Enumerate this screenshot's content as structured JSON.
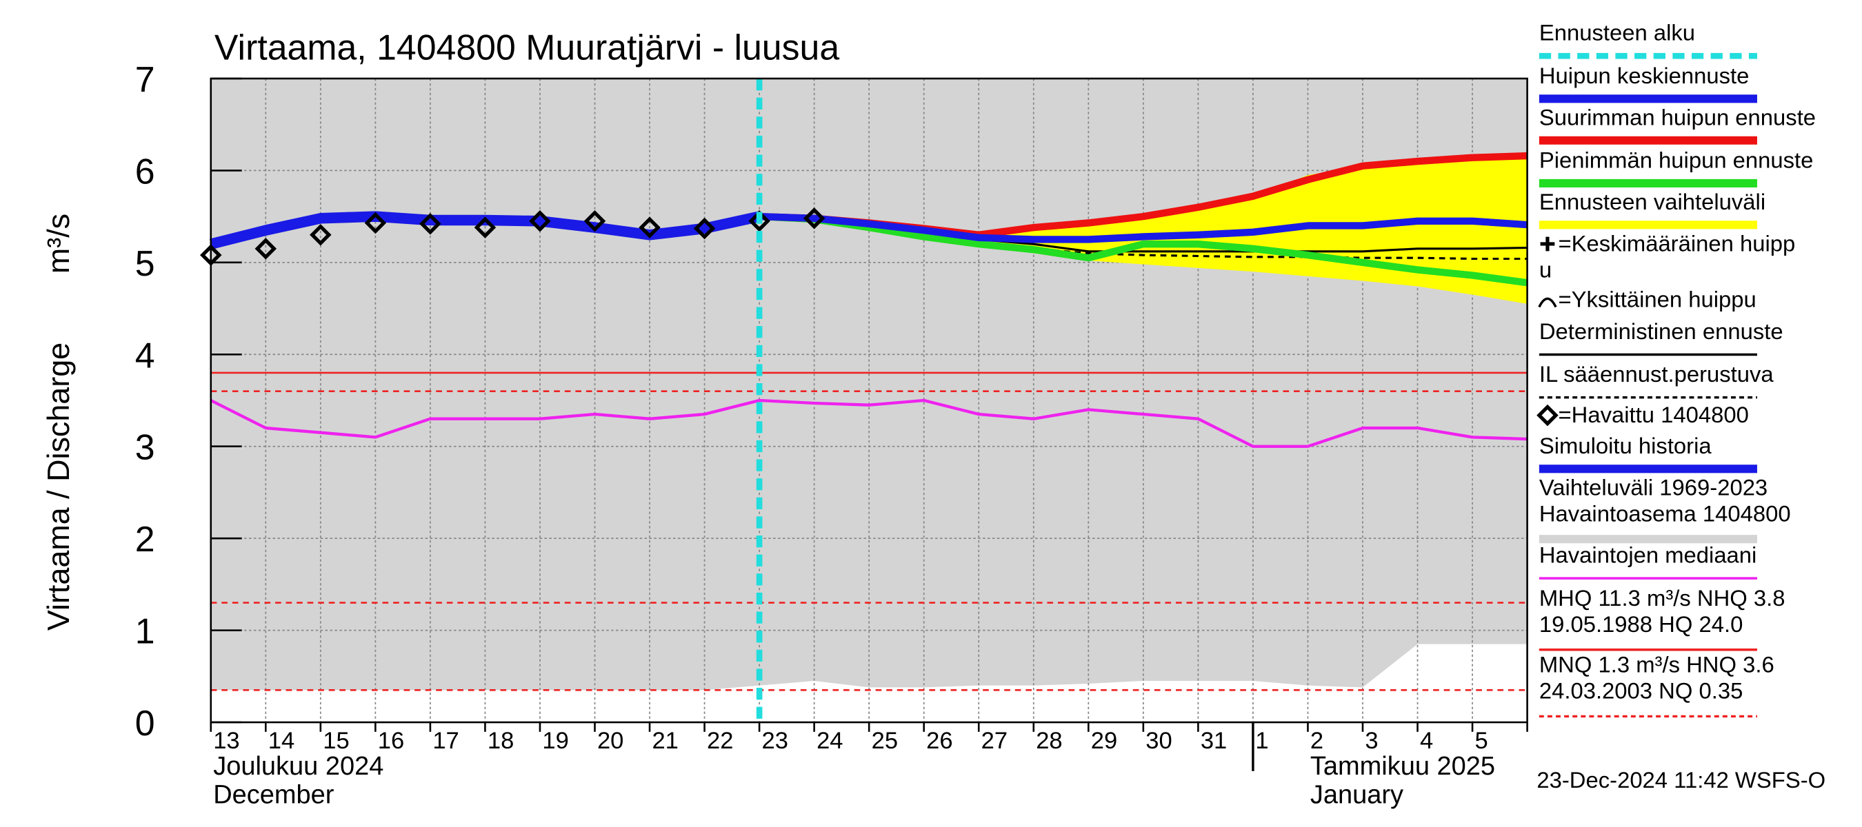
{
  "chart_data": {
    "type": "line",
    "title": "Virtaama, 1404800 Muuratjärvi - luusua",
    "y_label": "Virtaama / Discharge",
    "y_unit": "m³/s",
    "categories": [
      "13",
      "14",
      "15",
      "16",
      "17",
      "18",
      "19",
      "20",
      "21",
      "22",
      "23",
      "24",
      "25",
      "26",
      "27",
      "28",
      "29",
      "30",
      "31",
      "1",
      "2",
      "3",
      "4",
      "5",
      null
    ],
    "month_labels": [
      {
        "index": 0,
        "lines": [
          "Joulukuu  2024",
          "December"
        ]
      },
      {
        "index": 19,
        "lines": [
          "Tammikuu  2025",
          "January"
        ]
      }
    ],
    "ylim": [
      0,
      7
    ],
    "yticks": [
      0,
      1,
      2,
      3,
      4,
      5,
      6,
      7
    ],
    "grid": true,
    "forecast_start": {
      "x": 10,
      "color": "#22dddd"
    },
    "hlines": [
      {
        "value": 3.8,
        "color": "#ee2222",
        "dash": false
      },
      {
        "value": 3.6,
        "color": "#ee2222",
        "dash": true
      },
      {
        "value": 1.3,
        "color": "#ee2222",
        "dash": true
      },
      {
        "value": 0.35,
        "color": "#ee2222",
        "dash": true
      }
    ],
    "series": [
      {
        "kind": "area",
        "color": "#d4d4d4",
        "values": [
          7,
          7,
          7,
          7,
          7,
          7,
          7,
          7,
          7,
          7,
          7,
          7,
          7,
          7,
          7,
          7,
          7,
          7,
          7,
          7,
          7,
          7,
          7,
          7,
          7
        ],
        "lower": [
          0.35,
          0.35,
          0.35,
          0.35,
          0.35,
          0.35,
          0.35,
          0.35,
          0.35,
          0.35,
          0.4,
          0.45,
          0.38,
          0.38,
          0.4,
          0.4,
          0.42,
          0.45,
          0.45,
          0.45,
          0.4,
          0.38,
          0.85,
          0.85,
          0.85
        ]
      },
      {
        "kind": "line",
        "color": "#ee22ee",
        "width": 2.5,
        "values": [
          3.5,
          3.2,
          3.15,
          3.1,
          3.3,
          3.3,
          3.3,
          3.35,
          3.3,
          3.35,
          3.5,
          3.47,
          3.45,
          3.5,
          3.35,
          3.3,
          3.4,
          3.35,
          3.3,
          3.0,
          3.0,
          3.2,
          3.2,
          3.1,
          3.08
        ]
      },
      {
        "kind": "area",
        "color": "#ffff00",
        "values": [
          null,
          null,
          null,
          null,
          null,
          null,
          null,
          null,
          null,
          null,
          5.5,
          5.49,
          5.44,
          5.38,
          5.32,
          5.35,
          5.45,
          5.5,
          5.6,
          5.72,
          5.95,
          6.05,
          6.1,
          6.13,
          6.16
        ],
        "lower": [
          null,
          null,
          null,
          null,
          null,
          null,
          null,
          null,
          null,
          null,
          5.5,
          5.46,
          5.36,
          5.27,
          5.2,
          5.1,
          5.02,
          4.98,
          4.94,
          4.9,
          4.85,
          4.8,
          4.74,
          4.65,
          4.55
        ]
      },
      {
        "kind": "line",
        "color": "#000000",
        "width": 1.8,
        "values": [
          null,
          null,
          null,
          null,
          null,
          null,
          null,
          null,
          null,
          null,
          null,
          null,
          null,
          null,
          5.25,
          5.2,
          5.12,
          5.12,
          5.12,
          5.12,
          5.12,
          5.12,
          5.15,
          5.15,
          5.16
        ]
      },
      {
        "kind": "line",
        "color": "#000000",
        "width": 1.8,
        "dash": true,
        "values": [
          null,
          null,
          null,
          null,
          null,
          null,
          null,
          null,
          null,
          null,
          null,
          null,
          null,
          null,
          5.22,
          5.15,
          5.1,
          5.08,
          5.07,
          5.06,
          5.06,
          5.05,
          5.05,
          5.04,
          5.04
        ]
      },
      {
        "kind": "line",
        "color": "#22dd22",
        "width": 6,
        "values": [
          null,
          null,
          null,
          null,
          null,
          null,
          null,
          null,
          null,
          null,
          5.5,
          5.47,
          5.38,
          5.28,
          5.2,
          5.14,
          5.05,
          5.2,
          5.2,
          5.15,
          5.08,
          5.0,
          4.92,
          4.86,
          4.78
        ]
      },
      {
        "kind": "line",
        "color": "#ee1111",
        "width": 6,
        "values": [
          null,
          null,
          null,
          null,
          null,
          null,
          null,
          null,
          null,
          null,
          5.5,
          5.48,
          5.43,
          5.37,
          5.3,
          5.38,
          5.43,
          5.5,
          5.6,
          5.72,
          5.9,
          6.05,
          6.1,
          6.14,
          6.16
        ]
      },
      {
        "kind": "line",
        "color": "#1a1ae6",
        "width": 6,
        "values": [
          null,
          null,
          null,
          null,
          null,
          null,
          null,
          null,
          null,
          null,
          5.5,
          5.48,
          5.42,
          5.35,
          5.27,
          5.25,
          5.25,
          5.28,
          5.3,
          5.33,
          5.4,
          5.4,
          5.45,
          5.45,
          5.41
        ]
      },
      {
        "kind": "line",
        "color": "#1a1ae6",
        "width": 9,
        "values": [
          5.2,
          5.35,
          5.48,
          5.5,
          5.46,
          5.46,
          5.45,
          5.38,
          5.3,
          5.37,
          5.5,
          null,
          null,
          null,
          null,
          null,
          null,
          null,
          null,
          null,
          null,
          null,
          null,
          null,
          null
        ]
      },
      {
        "kind": "points",
        "color": "#000000",
        "values": [
          5.08,
          5.15,
          5.3,
          5.43,
          5.42,
          5.38,
          5.45,
          5.45,
          5.38,
          5.37,
          5.45,
          5.48,
          null,
          null,
          null,
          null,
          null,
          null,
          null,
          null,
          null,
          null,
          null,
          null,
          null
        ]
      }
    ],
    "legend": [
      {
        "lines": [
          "Ennusteen alku"
        ],
        "color": "#22dddd",
        "symbol": "dash"
      },
      {
        "lines": [
          "Huipun keskiennuste"
        ],
        "color": "#1a1ae6",
        "symbol": "line"
      },
      {
        "lines": [
          "Suurimman huipun ennuste"
        ],
        "color": "#ee1111",
        "symbol": "line"
      },
      {
        "lines": [
          "Pienimmän huipun ennuste"
        ],
        "color": "#22dd22",
        "symbol": "line"
      },
      {
        "lines": [
          "Ennusteen vaihteluväli"
        ],
        "color": "#ffff00",
        "symbol": "line"
      },
      {
        "lines": [
          "=Keskimääräinen huipp",
          "u"
        ],
        "color": "#000000",
        "symbol": "plus"
      },
      {
        "lines": [
          "=Yksittäinen huippu"
        ],
        "color": "#000000",
        "symbol": "arc"
      },
      {
        "lines": [
          "Deterministinen ennuste"
        ],
        "color": "#000000",
        "symbol": "thin"
      },
      {
        "lines": [
          "IL sääennust.perustuva"
        ],
        "color": "#000000",
        "symbol": "thindash"
      },
      {
        "lines": [
          "=Havaittu 1404800"
        ],
        "color": "#000000",
        "symbol": "diamond"
      },
      {
        "lines": [
          "Simuloitu historia"
        ],
        "color": "#1a1ae6",
        "symbol": "line"
      },
      {
        "lines": [
          "Vaihteluväli 1969-2023",
          " Havaintoasema 1404800"
        ],
        "color": "#d4d4d4",
        "symbol": "line"
      },
      {
        "lines": [
          "Havaintojen mediaani"
        ],
        "color": "#ee22ee",
        "symbol": "thin"
      },
      {
        "lines": [
          "MHQ 11.3 m³/s NHQ  3.8",
          "19.05.1988 HQ 24.0"
        ],
        "color": "#ee2222",
        "symbol": "thin"
      },
      {
        "lines": [
          "MNQ  1.3 m³/s HNQ  3.6",
          "24.03.2003 NQ 0.35"
        ],
        "color": "#ee2222",
        "symbol": "thindash"
      }
    ],
    "timestamp": "23-Dec-2024 11:42 WSFS-O"
  }
}
